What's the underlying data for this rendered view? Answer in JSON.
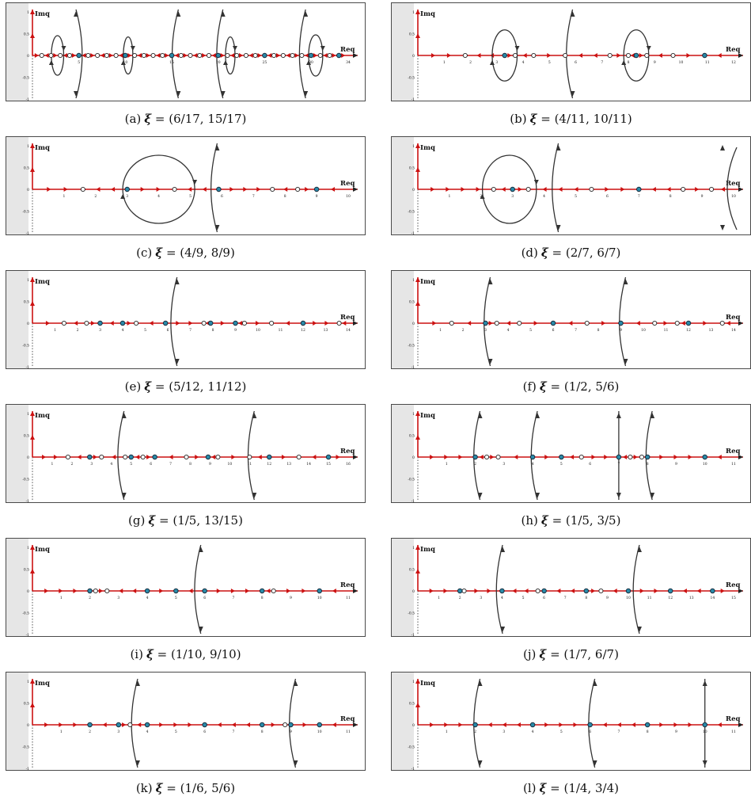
{
  "axis": {
    "imag_label": "Imq",
    "real_label": "Req",
    "imag_ticks": [
      "1",
      "0.5",
      "0",
      "-0.5",
      "-1"
    ]
  },
  "colors": {
    "axis_red": "#cc1111",
    "curve": "#333333",
    "zero_fill": "#2a8aa8",
    "pole_fill": "#ffffff",
    "grey_band": "#e6e6e6",
    "frame": "#4a4a4a"
  },
  "panels": [
    {
      "label": "(a)",
      "xi_symbol": "ξ",
      "equals": " = ",
      "value": "(6/17, 15/17)",
      "xmax": 34,
      "ticks": [
        5,
        10,
        15,
        20,
        25,
        30,
        34
      ],
      "whites": [
        1,
        2,
        3,
        4,
        6,
        7,
        8,
        9,
        11,
        12,
        13,
        14,
        16,
        17,
        18,
        19,
        21,
        22,
        23,
        24,
        26,
        27,
        28,
        29,
        31,
        32,
        33
      ],
      "blues": [
        5,
        10,
        15,
        20,
        25,
        30,
        33
      ],
      "loops": [
        [
          2.7,
          0.7
        ],
        [
          10.3,
          0.5
        ],
        [
          21.3,
          0.5
        ],
        [
          30.5,
          0.8
        ]
      ],
      "arcs": [
        [
          5.2,
          1
        ],
        [
          15.2,
          -1
        ],
        [
          20.0,
          -1
        ],
        [
          28.9,
          -1
        ]
      ]
    },
    {
      "label": "(b)",
      "xi_symbol": "ξ",
      "equals": " = ",
      "value": "(4/11, 10/11)",
      "xmax": 12,
      "ticks": [
        1,
        2,
        3,
        4,
        5,
        6,
        7,
        8,
        9,
        10,
        11,
        12
      ],
      "whites": [
        1.8,
        3.7,
        4.4,
        5.6,
        7.3,
        8.0,
        8.7,
        9.7
      ],
      "blues": [
        3.3,
        8.3,
        10.9
      ],
      "loops": [
        [
          3.3,
          0.5
        ],
        [
          8.3,
          0.5
        ]
      ],
      "arcs": [
        [
          5.7,
          -1
        ]
      ]
    },
    {
      "label": "(c)",
      "xi_symbol": "ξ",
      "equals": " = ",
      "value": "(4/9, 8/9)",
      "xmax": 10,
      "ticks": [
        1,
        2,
        3,
        4,
        5,
        6,
        7,
        8,
        9,
        10
      ],
      "whites": [
        1.6,
        4.5,
        7.6,
        8.4
      ],
      "blues": [
        3.0,
        5.9,
        9.0
      ],
      "loops": [
        [
          4.0,
          1.2
        ]
      ],
      "arcs": [
        [
          5.7,
          -1
        ]
      ]
    },
    {
      "label": "(d)",
      "xi_symbol": "ξ",
      "equals": " = ",
      "value": "(2/7, 6/7)",
      "xmax": 10,
      "ticks": [
        1,
        2,
        3,
        4,
        5,
        6,
        7,
        8,
        9,
        10
      ],
      "whites": [
        2.4,
        3.5,
        5.5,
        8.4,
        9.3
      ],
      "blues": [
        3.0,
        7.0
      ],
      "loops": [
        [
          2.9,
          0.9
        ]
      ],
      "arcs": [
        [
          4.3,
          -1
        ],
        [
          9.8,
          1
        ]
      ]
    },
    {
      "label": "(e)",
      "xi_symbol": "ξ",
      "equals": " = ",
      "value": "(5/12, 11/12)",
      "xmax": 14,
      "ticks": [
        1,
        2,
        3,
        4,
        5,
        6,
        7,
        8,
        9,
        10,
        11,
        12,
        13,
        14
      ],
      "whites": [
        1.4,
        2.4,
        4.6,
        7.6,
        9.4,
        10.6,
        13.6
      ],
      "blues": [
        3.0,
        4.0,
        5.9,
        7.9,
        9.0,
        12.0
      ],
      "loops": [],
      "arcs": [
        [
          6.2,
          -1
        ]
      ]
    },
    {
      "label": "(f)",
      "xi_symbol": "ξ",
      "equals": " = ",
      "value": "(1/2, 5/6)",
      "xmax": 14,
      "ticks": [
        1,
        2,
        3,
        4,
        5,
        6,
        7,
        8,
        9,
        10,
        11,
        12,
        13,
        14
      ],
      "whites": [
        1.5,
        3.5,
        4.5,
        7.5,
        10.5,
        11.5,
        13.5
      ],
      "blues": [
        3.0,
        6.0,
        9.0,
        12.0
      ],
      "loops": [],
      "arcs": [
        [
          3.0,
          -1
        ],
        [
          9.0,
          -1
        ]
      ]
    },
    {
      "label": "(g)",
      "xi_symbol": "ξ",
      "equals": " = ",
      "value": "(1/5, 13/15)",
      "xmax": 16,
      "ticks": [
        1,
        2,
        3,
        4,
        5,
        6,
        7,
        8,
        9,
        10,
        11,
        12,
        13,
        14,
        15,
        16
      ],
      "whites": [
        1.8,
        3.5,
        4.7,
        5.6,
        7.8,
        9.4,
        11.0,
        13.5
      ],
      "blues": [
        2.9,
        5.0,
        6.2,
        8.9,
        12.0,
        15.0
      ],
      "loops": [],
      "arcs": [
        [
          4.4,
          -1
        ],
        [
          11.0,
          -1
        ]
      ]
    },
    {
      "label": "(h)",
      "xi_symbol": "ξ",
      "equals": " = ",
      "value": "(1/5, 3/5)",
      "xmax": 11,
      "ticks": [
        1,
        2,
        3,
        4,
        5,
        6,
        7,
        8,
        9,
        10,
        11
      ],
      "whites": [
        2.4,
        2.8,
        5.7,
        7.4,
        7.8
      ],
      "blues": [
        2.0,
        4.0,
        5.0,
        7.0,
        8.0,
        10.0
      ],
      "loops": [],
      "arcs": [
        [
          2.0,
          -1
        ],
        [
          4.0,
          -1
        ],
        [
          7.0,
          0
        ],
        [
          8.0,
          -1
        ]
      ]
    },
    {
      "label": "(i)",
      "xi_symbol": "ξ",
      "equals": " = ",
      "value": "(1/10, 9/10)",
      "xmax": 11,
      "ticks": [
        1,
        2,
        3,
        4,
        5,
        6,
        7,
        8,
        9,
        10,
        11
      ],
      "whites": [
        2.2,
        2.6,
        8.4
      ],
      "blues": [
        2.0,
        4.0,
        5.0,
        6.0,
        8.0,
        10.0
      ],
      "loops": [],
      "arcs": [
        [
          5.7,
          -1
        ]
      ]
    },
    {
      "label": "(j)",
      "xi_symbol": "ξ",
      "equals": " = ",
      "value": "(1/7, 6/7)",
      "xmax": 15,
      "ticks": [
        1,
        2,
        3,
        4,
        5,
        6,
        7,
        8,
        9,
        10,
        11,
        12,
        13,
        14,
        15
      ],
      "whites": [
        2.2,
        5.7,
        8.7
      ],
      "blues": [
        2.0,
        4.0,
        6.0,
        8.0,
        10.0,
        12.0,
        14.0
      ],
      "loops": [],
      "arcs": [
        [
          3.8,
          -1
        ],
        [
          10.3,
          -1
        ]
      ]
    },
    {
      "label": "(k)",
      "xi_symbol": "ξ",
      "equals": " = ",
      "value": "(1/6, 5/6)",
      "xmax": 11,
      "ticks": [
        1,
        2,
        3,
        4,
        5,
        6,
        7,
        8,
        9,
        10,
        11
      ],
      "whites": [
        3.4,
        8.8
      ],
      "blues": [
        2.0,
        3.0,
        4.0,
        6.0,
        8.0,
        9.0,
        10.0
      ],
      "loops": [],
      "arcs": [
        [
          3.5,
          -1
        ],
        [
          9.0,
          -1
        ]
      ]
    },
    {
      "label": "(l)",
      "xi_symbol": "ξ",
      "equals": " = ",
      "value": "(1/4, 3/4)",
      "xmax": 11,
      "ticks": [
        1,
        2,
        3,
        4,
        5,
        6,
        7,
        8,
        9,
        10,
        11
      ],
      "whites": [],
      "blues": [
        2.0,
        4.0,
        6.0,
        8.0,
        10.0
      ],
      "loops": [],
      "arcs": [
        [
          2.0,
          -1
        ],
        [
          6.0,
          -1
        ],
        [
          10.0,
          0
        ]
      ]
    }
  ]
}
